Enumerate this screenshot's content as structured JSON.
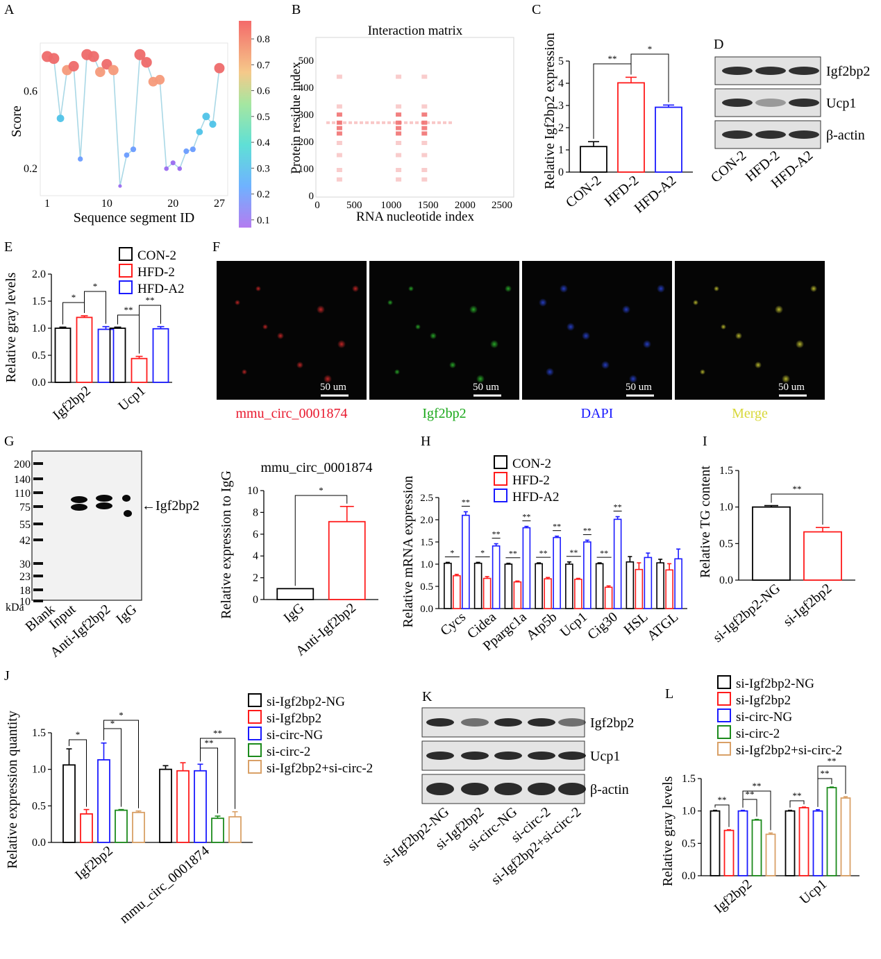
{
  "palette": {
    "black": "#000000",
    "red": "#ff1a1a",
    "blue": "#1a1aff",
    "green": "#1c8a1c",
    "tan": "#d9a066",
    "red_text": "#e8182d",
    "green_text": "#1aa81a",
    "blue_text": "#1a1aff",
    "yellow_text": "#d8d83a",
    "scatter_line": "#a9d8e6"
  },
  "panels": {
    "A": {
      "letter": "A"
    },
    "B": {
      "letter": "B"
    },
    "C": {
      "letter": "C"
    },
    "D": {
      "letter": "D"
    },
    "E": {
      "letter": "E"
    },
    "F": {
      "letter": "F"
    },
    "G": {
      "letter": "G"
    },
    "H": {
      "letter": "H"
    },
    "I": {
      "letter": "I"
    },
    "J": {
      "letter": "J"
    },
    "K": {
      "letter": "K"
    },
    "L": {
      "letter": "L"
    }
  },
  "blots": {
    "D": {
      "rows": [
        "Igf2bp2",
        "Ucp1",
        "β-actin"
      ],
      "lanes": [
        "CON-2",
        "HFD-2",
        "HFD-A2"
      ]
    },
    "G": {
      "markers": [
        "200",
        "140",
        "110",
        "75",
        "55",
        "42",
        "30",
        "23",
        "18",
        "10"
      ],
      "unit": "kDa",
      "lanes": [
        "Blank",
        "Input",
        "Anti-Igf2bp2",
        "IgG"
      ],
      "arrow_label": "←Igf2bp2"
    },
    "K": {
      "rows": [
        "Igf2bp2",
        "Ucp1",
        "β-actin"
      ],
      "lanes": [
        "si-Igf2bp2-NG",
        "si-Igf2bp2",
        "si-circ-NG",
        "si-circ-2",
        "si-Igf2bp2+si-circ-2"
      ]
    }
  },
  "micrographs": {
    "panels": [
      {
        "caption": "mmu_circ_0001874",
        "channel": "red",
        "scale": "50 um"
      },
      {
        "caption": "Igf2bp2",
        "channel": "green",
        "scale": "50 um"
      },
      {
        "caption": "DAPI",
        "channel": "blue",
        "scale": "50 um"
      },
      {
        "caption": "Merge",
        "channel": "merge",
        "scale": "50 um"
      }
    ]
  },
  "chart_data": [
    {
      "panel": "A",
      "type": "scatter",
      "xlabel": "Sequence segment ID",
      "ylabel": "Score",
      "xticks": [
        "1",
        "10",
        "20",
        "27"
      ],
      "yticks": [
        "0.2",
        "0.6"
      ],
      "xlim": [
        0,
        28
      ],
      "ylim": [
        0.06,
        0.85
      ],
      "x": [
        1,
        2,
        3,
        4,
        5,
        6,
        7,
        8,
        9,
        10,
        11,
        12,
        13,
        14,
        15,
        16,
        17,
        18,
        19,
        20,
        21,
        22,
        23,
        24,
        25,
        26,
        27
      ],
      "y": [
        0.78,
        0.77,
        0.46,
        0.71,
        0.73,
        0.25,
        0.79,
        0.78,
        0.7,
        0.74,
        0.71,
        0.11,
        0.27,
        0.3,
        0.79,
        0.75,
        0.65,
        0.66,
        0.2,
        0.23,
        0.2,
        0.29,
        0.3,
        0.39,
        0.47,
        0.43,
        0.72
      ],
      "colorbar": {
        "ticks": [
          "0.1",
          "0.2",
          "0.3",
          "0.4",
          "0.5",
          "0.6",
          "0.7",
          "0.8"
        ],
        "range": [
          0.07,
          0.87
        ]
      }
    },
    {
      "panel": "B",
      "type": "heatmap",
      "title": "Interaction matrix",
      "xlabel": "RNA nucleotide index",
      "ylabel": "Protein residue index",
      "xticks": [
        "0",
        "500",
        "1000",
        "1500",
        "2000",
        "2500"
      ],
      "yticks": [
        "0",
        "100",
        "200",
        "300",
        "400",
        "500"
      ],
      "xlim": [
        0,
        2650
      ],
      "ylim": [
        0,
        580
      ],
      "hot_columns": [
        300,
        1100,
        1450
      ],
      "hot_row": 270
    },
    {
      "panel": "C",
      "type": "bar",
      "ylabel": "Relative Igf2bp2 expression",
      "categories": [
        "CON-2",
        "HFD-2",
        "HFD-A2"
      ],
      "values": [
        1.15,
        4.02,
        2.92
      ],
      "errors": [
        0.22,
        0.25,
        0.1
      ],
      "ylim": [
        0,
        5
      ],
      "yticks": [
        "0",
        "1",
        "2",
        "3",
        "4",
        "5"
      ],
      "significance": [
        {
          "from": 0,
          "to": 1,
          "label": "**"
        },
        {
          "from": 1,
          "to": 2,
          "label": "*"
        }
      ]
    },
    {
      "panel": "E",
      "type": "bar",
      "ylabel": "Relative gray levels",
      "categories": [
        "Igf2bp2",
        "Ucp1"
      ],
      "series": [
        {
          "name": "CON-2",
          "values": [
            1.0,
            1.0
          ],
          "errors": [
            0.02,
            0.02
          ]
        },
        {
          "name": "HFD-2",
          "values": [
            1.2,
            0.44
          ],
          "errors": [
            0.03,
            0.04
          ]
        },
        {
          "name": "HFD-A2",
          "values": [
            0.98,
            0.99
          ],
          "errors": [
            0.05,
            0.04
          ]
        }
      ],
      "ylim": [
        0,
        2.0
      ],
      "yticks": [
        "0.0",
        "0.5",
        "1.0",
        "1.5",
        "2.0"
      ],
      "significance": [
        {
          "group": 0,
          "from": 0,
          "to": 1,
          "label": "*"
        },
        {
          "group": 0,
          "from": 1,
          "to": 2,
          "label": "*"
        },
        {
          "group": 1,
          "from": 0,
          "to": 1,
          "label": "**"
        },
        {
          "group": 1,
          "from": 1,
          "to": 2,
          "label": "**"
        }
      ]
    },
    {
      "panel": "G",
      "type": "bar",
      "title": "mmu_circ_0001874",
      "ylabel": "Relative expression to IgG",
      "categories": [
        "IgG",
        "Anti-Igf2bp2"
      ],
      "values": [
        1.0,
        7.15
      ],
      "errors": [
        0,
        1.4
      ],
      "ylim": [
        0,
        10
      ],
      "yticks": [
        "0",
        "2",
        "4",
        "6",
        "8",
        "10"
      ],
      "significance": [
        {
          "from": 0,
          "to": 1,
          "label": "*"
        }
      ]
    },
    {
      "panel": "H",
      "type": "bar",
      "ylabel": "Relative mRNA expression",
      "categories": [
        "Cycs",
        "Cidea",
        "Ppargc1a",
        "Atp5b",
        "Ucp1",
        "Cig30",
        "HSL",
        "ATGL"
      ],
      "series": [
        {
          "name": "CON-2",
          "values": [
            1.02,
            1.02,
            1.0,
            1.01,
            1.0,
            1.01,
            1.05,
            1.03
          ],
          "errors": [
            0.02,
            0.02,
            0.02,
            0.02,
            0.05,
            0.02,
            0.12,
            0.08
          ]
        },
        {
          "name": "HFD-2",
          "values": [
            0.74,
            0.68,
            0.6,
            0.67,
            0.66,
            0.48,
            0.88,
            0.87
          ],
          "errors": [
            0.03,
            0.04,
            0.02,
            0.03,
            0.02,
            0.03,
            0.15,
            0.14
          ]
        },
        {
          "name": "HFD-A2",
          "values": [
            2.1,
            1.41,
            1.82,
            1.6,
            1.5,
            2.01,
            1.15,
            1.12
          ],
          "errors": [
            0.08,
            0.05,
            0.03,
            0.03,
            0.04,
            0.06,
            0.1,
            0.22
          ]
        }
      ],
      "ylim": [
        0,
        2.5
      ],
      "yticks": [
        "0.0",
        "0.5",
        "1.0",
        "1.5",
        "2.0",
        "2.5"
      ],
      "sig_labels": [
        "*",
        "**"
      ]
    },
    {
      "panel": "I",
      "type": "bar",
      "ylabel": "Relative TG content",
      "categories": [
        "si-Igf2bp2-NG",
        "si-Igf2bp2"
      ],
      "values": [
        1.0,
        0.66
      ],
      "errors": [
        0.02,
        0.06
      ],
      "ylim": [
        0,
        1.5
      ],
      "yticks": [
        "0.0",
        "0.5",
        "1.0",
        "1.5"
      ],
      "significance": [
        {
          "from": 0,
          "to": 1,
          "label": "**"
        }
      ]
    },
    {
      "panel": "J",
      "type": "bar",
      "ylabel": "Relative expression quantity",
      "categories": [
        "Igf2bp2",
        "mmu_circ_0001874"
      ],
      "series": [
        {
          "name": "si-Igf2bp2-NG",
          "values": [
            1.06,
            1.0
          ],
          "errors": [
            0.22,
            0.05
          ]
        },
        {
          "name": "si-Igf2bp2",
          "values": [
            0.39,
            0.98
          ],
          "errors": [
            0.06,
            0.11
          ]
        },
        {
          "name": "si-circ-NG",
          "values": [
            1.13,
            0.98
          ],
          "errors": [
            0.23,
            0.09
          ]
        },
        {
          "name": "si-circ-2",
          "values": [
            0.44,
            0.33
          ],
          "errors": [
            0.01,
            0.03
          ]
        },
        {
          "name": "si-Igf2bp2+si-circ-2",
          "values": [
            0.41,
            0.35
          ],
          "errors": [
            0.02,
            0.07
          ]
        }
      ],
      "ylim": [
        0,
        1.5
      ],
      "yticks": [
        "0.0",
        "0.5",
        "1.0",
        "1.5"
      ],
      "significance": [
        {
          "group": 0,
          "from": 0,
          "to": 1,
          "label": "*"
        },
        {
          "group": 0,
          "from": 2,
          "to": 3,
          "label": "*"
        },
        {
          "group": 0,
          "from": 2,
          "to": 4,
          "label": "*"
        },
        {
          "group": 1,
          "from": 2,
          "to": 3,
          "label": "**"
        },
        {
          "group": 1,
          "from": 2,
          "to": 4,
          "label": "**"
        }
      ]
    },
    {
      "panel": "L",
      "type": "bar",
      "ylabel": "Relative gray levels",
      "categories": [
        "Igf2bp2",
        "Ucp1"
      ],
      "series": [
        {
          "name": "si-Igf2bp2-NG",
          "values": [
            1.0,
            1.0
          ],
          "errors": [
            0.01,
            0.01
          ]
        },
        {
          "name": "si-Igf2bp2",
          "values": [
            0.7,
            1.05
          ],
          "errors": [
            0.01,
            0.01
          ]
        },
        {
          "name": "si-circ-NG",
          "values": [
            1.0,
            1.0
          ],
          "errors": [
            0.01,
            0.02
          ]
        },
        {
          "name": "si-circ-2",
          "values": [
            0.86,
            1.36
          ],
          "errors": [
            0.01,
            0.01
          ]
        },
        {
          "name": "si-Igf2bp2+si-circ-2",
          "values": [
            0.64,
            1.2
          ],
          "errors": [
            0.02,
            0.02
          ]
        }
      ],
      "ylim": [
        0,
        1.5
      ],
      "yticks": [
        "0.0",
        "0.5",
        "1.0",
        "1.5"
      ],
      "significance": [
        {
          "group": 0,
          "from": 0,
          "to": 1,
          "label": "**"
        },
        {
          "group": 0,
          "from": 2,
          "to": 3,
          "label": "**"
        },
        {
          "group": 0,
          "from": 2,
          "to": 4,
          "label": "**"
        },
        {
          "group": 1,
          "from": 0,
          "to": 1,
          "label": "**"
        },
        {
          "group": 1,
          "from": 2,
          "to": 3,
          "label": "**"
        },
        {
          "group": 1,
          "from": 2,
          "to": 4,
          "label": "**"
        }
      ]
    }
  ]
}
